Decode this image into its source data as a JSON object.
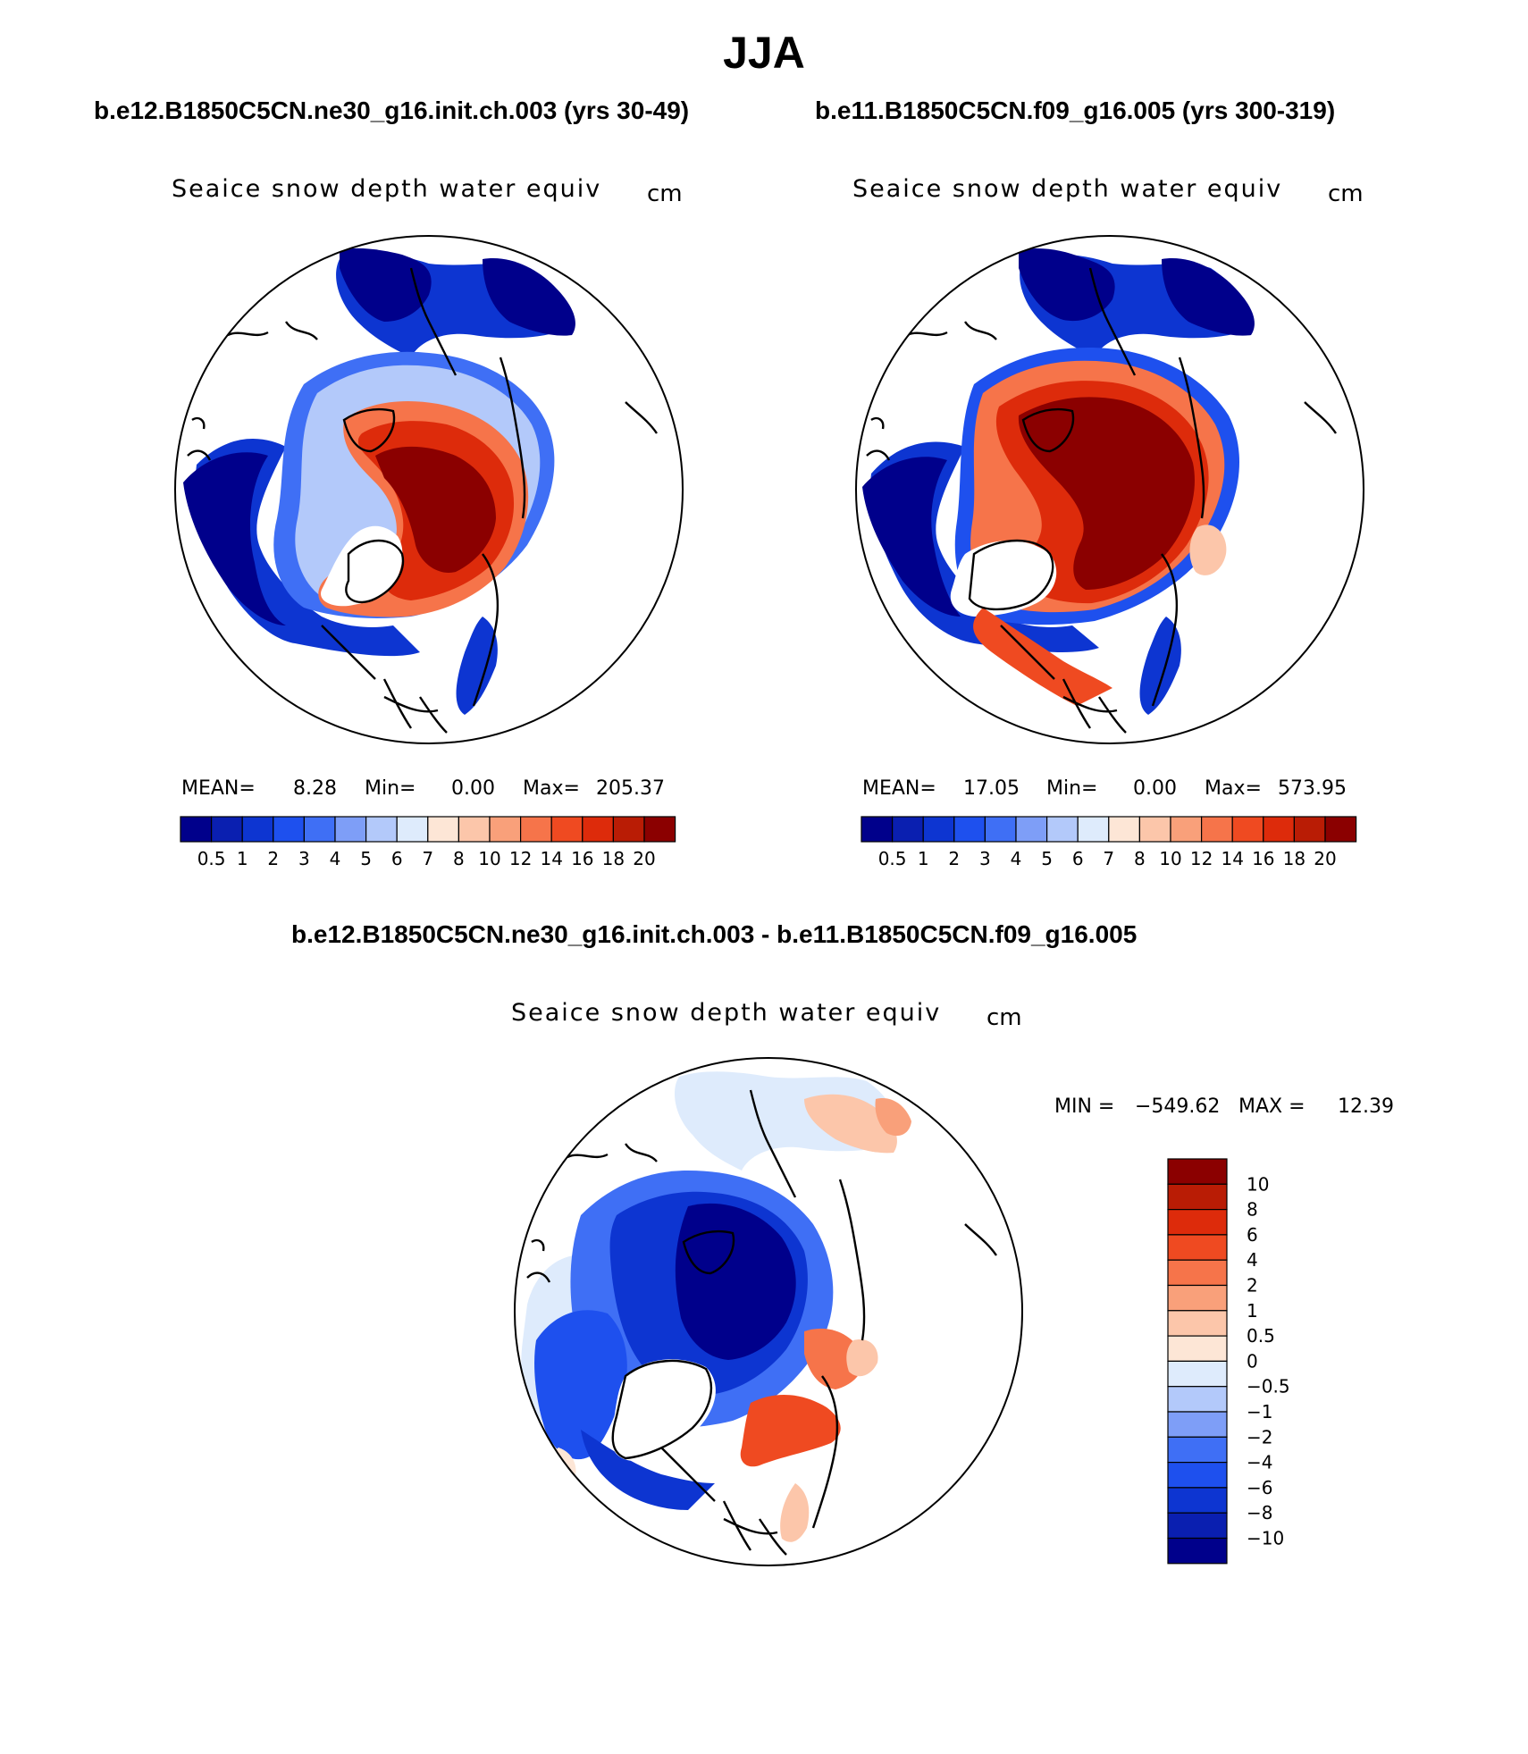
{
  "title": "JJA",
  "diff_title": "b.e12.B1850C5CN.ne30_g16.init.ch.003 - b.e11.B1850C5CN.f09_g16.005",
  "colors": {
    "abs_scale": [
      "#00008b",
      "#0a1fb0",
      "#0d35d1",
      "#1e50ee",
      "#3f6ff5",
      "#7e9ef7",
      "#b3c9fa",
      "#deebfc",
      "#fde6d6",
      "#fcc6aa",
      "#f9a07a",
      "#f6744a",
      "#ef4a21",
      "#dd2b0b",
      "#b91c05",
      "#8b0000"
    ],
    "diff_scale": [
      "#00008b",
      "#0a1fb0",
      "#0d35d1",
      "#1e50ee",
      "#3f6ff5",
      "#7e9ef7",
      "#b3c9fa",
      "#deebfc",
      "#fde6d6",
      "#fcc6aa",
      "#f9a07a",
      "#f6744a",
      "#ef4a21",
      "#dd2b0b",
      "#b91c05",
      "#8b0000"
    ]
  },
  "panels": [
    {
      "run_label": "b.e12.B1850C5CN.ne30_g16.init.ch.003 (yrs 30-49)",
      "variable": "Seaice snow depth water equiv",
      "units": "cm",
      "mean_label": "MEAN=",
      "mean": "8.28",
      "min_label": "Min=",
      "min": "0.00",
      "max_label": "Max=",
      "max": "205.37",
      "colorbar_labels": [
        "0.5",
        "1",
        "2",
        "3",
        "4",
        "5",
        "6",
        "7",
        "8",
        "10",
        "12",
        "14",
        "16",
        "18",
        "20"
      ]
    },
    {
      "run_label": "b.e11.B1850C5CN.f09_g16.005 (yrs 300-319)",
      "variable": "Seaice snow depth water equiv",
      "units": "cm",
      "mean_label": "MEAN=",
      "mean": "17.05",
      "min_label": "Min=",
      "min": "0.00",
      "max_label": "Max=",
      "max": "573.95",
      "colorbar_labels": [
        "0.5",
        "1",
        "2",
        "3",
        "4",
        "5",
        "6",
        "7",
        "8",
        "10",
        "12",
        "14",
        "16",
        "18",
        "20"
      ]
    }
  ],
  "diff_panel": {
    "variable": "Seaice snow depth water equiv",
    "units": "cm",
    "min_label": "MIN =",
    "min": "−549.62",
    "max_label": "MAX =",
    "max": "12.39",
    "colorbar_labels": [
      "10",
      "8",
      "6",
      "4",
      "2",
      "1",
      "0.5",
      "0",
      "−0.5",
      "−1",
      "−2",
      "−4",
      "−6",
      "−8",
      "−10"
    ]
  }
}
